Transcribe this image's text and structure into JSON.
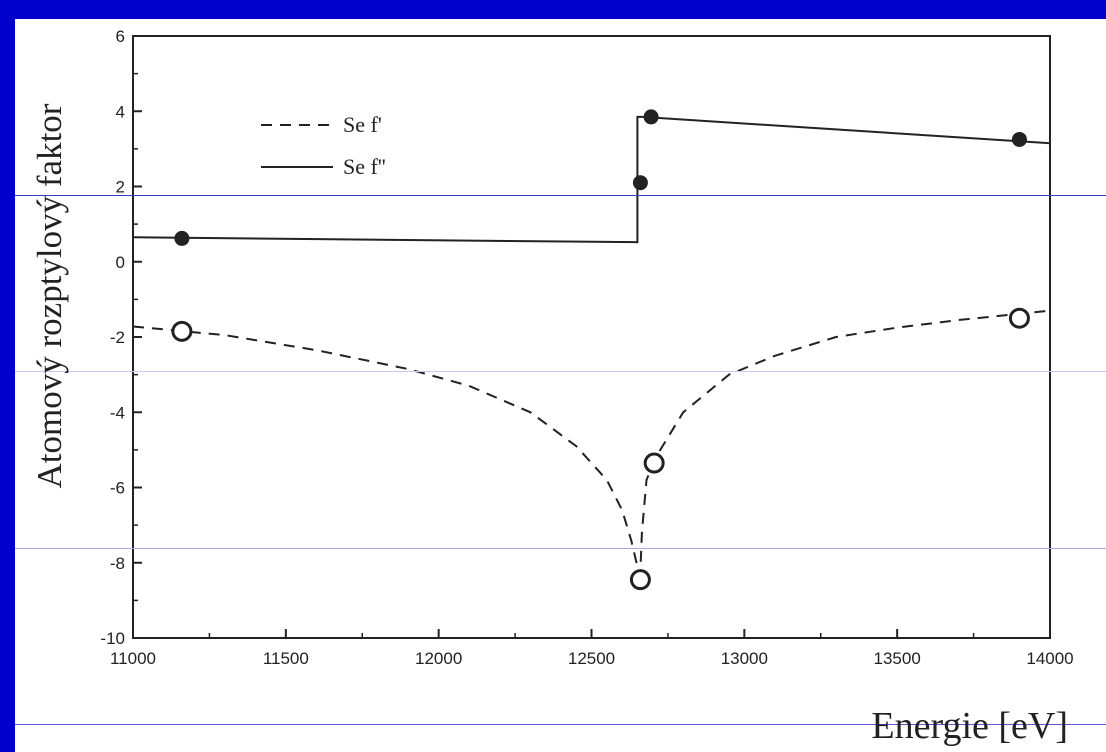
{
  "chart_data": {
    "type": "line",
    "title": "",
    "xlabel": "Energie [eV]",
    "ylabel": "Atomový rozptylový faktor",
    "xlim": [
      11000,
      14000
    ],
    "ylim": [
      -10,
      6
    ],
    "xticks": [
      "11000",
      "11500",
      "12000",
      "12500",
      "13000",
      "13500",
      "14000"
    ],
    "yticks": [
      "6",
      "4",
      "2",
      "0",
      "-2",
      "-4",
      "-6",
      "-8",
      "-10"
    ],
    "xtick_values": [
      11000,
      11500,
      12000,
      12500,
      13000,
      13500,
      14000
    ],
    "ytick_values": [
      6,
      4,
      2,
      0,
      -2,
      -4,
      -6,
      -8,
      -10
    ],
    "legend_position": "top-left",
    "grid": false,
    "series": [
      {
        "name": "Se f'",
        "style": "dashed",
        "curve": [
          [
            11000,
            -1.72
          ],
          [
            11300,
            -1.95
          ],
          [
            11600,
            -2.35
          ],
          [
            11900,
            -2.85
          ],
          [
            12100,
            -3.3
          ],
          [
            12300,
            -4.0
          ],
          [
            12450,
            -4.9
          ],
          [
            12550,
            -5.8
          ],
          [
            12600,
            -6.6
          ],
          [
            12630,
            -7.4
          ],
          [
            12650,
            -8.1
          ],
          [
            12658,
            -8.6
          ],
          [
            12665,
            -7.2
          ],
          [
            12680,
            -5.8
          ],
          [
            12710,
            -5.2
          ],
          [
            12800,
            -4.0
          ],
          [
            12950,
            -3.0
          ],
          [
            13100,
            -2.5
          ],
          [
            13300,
            -2.0
          ],
          [
            13500,
            -1.75
          ],
          [
            13700,
            -1.55
          ],
          [
            14000,
            -1.3
          ]
        ],
        "points": [
          [
            11160,
            -1.85
          ],
          [
            12660,
            -8.45
          ],
          [
            12705,
            -5.35
          ],
          [
            13900,
            -1.5
          ]
        ],
        "marker": "open-circle"
      },
      {
        "name": "Se f''",
        "style": "solid",
        "curve": [
          [
            11000,
            0.65
          ],
          [
            12650,
            0.52
          ],
          [
            12650,
            3.85
          ],
          [
            12665,
            3.85
          ],
          [
            14000,
            3.15
          ]
        ],
        "points": [
          [
            11160,
            0.62
          ],
          [
            12660,
            2.1
          ],
          [
            12695,
            3.85
          ],
          [
            13900,
            3.25
          ]
        ],
        "marker": "filled-circle"
      }
    ]
  },
  "colors": {
    "background": "#0000CC",
    "plot_background": "#ffffff",
    "ink": "#222222"
  }
}
